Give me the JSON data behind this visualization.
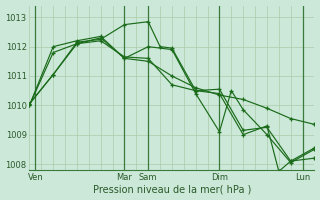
{
  "bg_color": "#cce8d8",
  "grid_color": "#aacaaa",
  "line_color": "#1a6b1a",
  "xlabel": "Pression niveau de la mer( hPa )",
  "ylim": [
    1007.8,
    1013.4
  ],
  "yticks": [
    1008,
    1009,
    1010,
    1011,
    1012,
    1013
  ],
  "xlim": [
    0,
    24
  ],
  "xtick_positions": [
    0.5,
    8,
    10,
    16,
    23
  ],
  "xtick_labels": [
    "Ven",
    "Mar",
    "Sam",
    "Dim",
    "Lun"
  ],
  "vline_positions": [
    0.5,
    8,
    10,
    16,
    23
  ],
  "series": [
    {
      "x": [
        0,
        2,
        4,
        6,
        8,
        10,
        12,
        14,
        16,
        18,
        20,
        22,
        24
      ],
      "y": [
        1010.0,
        1011.8,
        1012.1,
        1012.3,
        1011.6,
        1011.5,
        1011.0,
        1010.6,
        1010.35,
        1010.2,
        1009.9,
        1009.55,
        1009.35
      ]
    },
    {
      "x": [
        0,
        2,
        4,
        6,
        8,
        10,
        12,
        14,
        16,
        17,
        18,
        20,
        22,
        24
      ],
      "y": [
        1010.0,
        1012.0,
        1012.2,
        1012.35,
        1011.6,
        1012.0,
        1011.9,
        1010.4,
        1009.1,
        1010.5,
        1009.85,
        1009.0,
        1008.05,
        1008.5
      ]
    },
    {
      "x": [
        0,
        2,
        4,
        6,
        8,
        10,
        12,
        14,
        16,
        18,
        20,
        21,
        22,
        24
      ],
      "y": [
        1010.05,
        1011.05,
        1012.1,
        1012.2,
        1011.65,
        1011.6,
        1010.7,
        1010.5,
        1010.4,
        1009.0,
        1009.3,
        1007.75,
        1008.1,
        1008.2
      ]
    },
    {
      "x": [
        0,
        2,
        4,
        6,
        8,
        10,
        11,
        12,
        14,
        16,
        18,
        20,
        22,
        24
      ],
      "y": [
        1010.05,
        1011.05,
        1012.15,
        1012.25,
        1012.75,
        1012.85,
        1012.0,
        1011.95,
        1010.5,
        1010.55,
        1009.15,
        1009.25,
        1008.1,
        1008.55
      ]
    }
  ]
}
